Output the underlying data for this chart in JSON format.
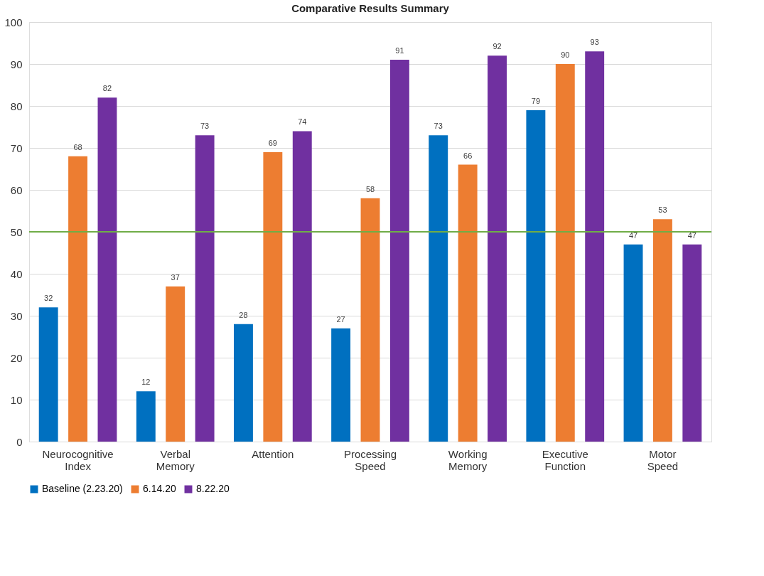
{
  "chart_data": {
    "type": "bar",
    "title": "Comparative Results Summary",
    "categories": [
      "Neurocognitive Index",
      "Verbal Memory",
      "Attention",
      "Processing Speed",
      "Working Memory",
      "Executive Function",
      "Motor Speed"
    ],
    "series": [
      {
        "name": "Baseline (2.23.20)",
        "color": "#0070c0",
        "values": [
          32,
          12,
          28,
          27,
          73,
          79,
          47
        ]
      },
      {
        "name": "6.14.20",
        "color": "#ed7d31",
        "values": [
          68,
          37,
          69,
          58,
          66,
          90,
          53
        ]
      },
      {
        "name": "8.22.20",
        "color": "#7030a0",
        "values": [
          82,
          73,
          74,
          91,
          92,
          93,
          47
        ]
      }
    ],
    "ylim": [
      0,
      100
    ],
    "yticks": [
      0,
      10,
      20,
      30,
      40,
      50,
      60,
      70,
      80,
      90,
      100
    ],
    "grid": "y",
    "legend": "bottom",
    "data_labels": true,
    "ref_lines": [
      {
        "axis": "y",
        "value": 50,
        "label": null,
        "color": "#70ad47"
      }
    ]
  }
}
